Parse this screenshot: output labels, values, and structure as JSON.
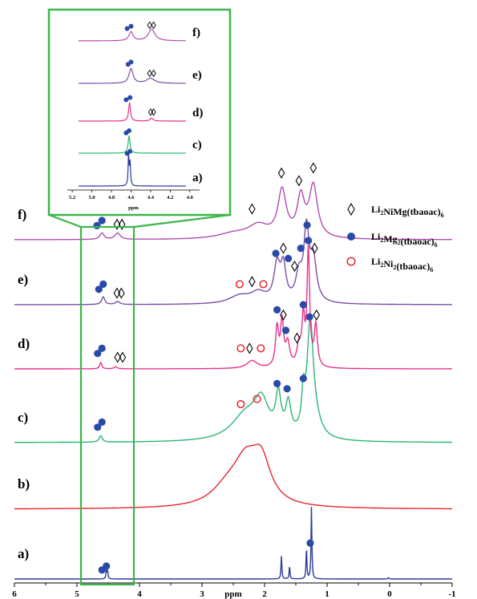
{
  "chart_data": {
    "type": "line",
    "xlabel": "ppm",
    "xlim": [
      6,
      -1
    ],
    "x_reversed": true,
    "xticks": [
      "6",
      "5",
      "4",
      "3",
      "2",
      "1",
      "0",
      "-1"
    ],
    "colors": {
      "a": "#2b3a9a",
      "b": "#e8262e",
      "c": "#2bb673",
      "d": "#e8308a",
      "e": "#7a4fa8",
      "f": "#b04cb0",
      "highlight": "#3db54a",
      "marker_mg": "#2a4aa8",
      "marker_ni": "#e8262e"
    },
    "legend": {
      "position": "right",
      "entries": [
        {
          "symbol": "diamond",
          "label": "Li",
          "sub1": "2",
          "label2": "NiMg(tbaoac)",
          "sub2": "6"
        },
        {
          "symbol": "filled-circle",
          "label": "Li",
          "sub1": "2",
          "label2": "Mg",
          "sub2": "2",
          "label3": "(tbaoac)",
          "sub3": "6"
        },
        {
          "symbol": "open-circle",
          "label": "Li",
          "sub1": "2",
          "label2": "Ni",
          "sub2": "2",
          "label3": "(tbaoac)",
          "sub3": "6"
        }
      ]
    },
    "series": [
      {
        "name": "a)",
        "baseline_y": 0,
        "peaks": [
          [
            4.53,
            0.35,
            0.008
          ],
          [
            4.51,
            0.3,
            0.008
          ],
          [
            1.73,
            0.9,
            0.008
          ],
          [
            1.6,
            0.5,
            0.008
          ],
          [
            1.33,
            1.2,
            0.008
          ],
          [
            1.25,
            2.8,
            0.008
          ],
          [
            0.02,
            0.05,
            0.01
          ]
        ],
        "markers": {
          "mg": [
            [
              4.6,
              0.35
            ],
            [
              4.53,
              0.5
            ],
            [
              1.27,
              1.4
            ]
          ],
          "ni": [],
          "nimg": []
        }
      },
      {
        "name": "b)",
        "baseline_y": 0,
        "peaks": [
          [
            2.3,
            1.6,
            0.25
          ],
          [
            2.05,
            1.5,
            0.18
          ],
          [
            2.6,
            0.6,
            0.3
          ]
        ],
        "markers": {
          "mg": [],
          "ni": [],
          "nimg": []
        }
      },
      {
        "name": "c)",
        "baseline_y": 0,
        "peaks": [
          [
            4.62,
            0.25,
            0.03
          ],
          [
            2.3,
            1.0,
            0.28
          ],
          [
            2.05,
            1.3,
            0.14
          ],
          [
            1.78,
            1.5,
            0.05
          ],
          [
            1.62,
            1.2,
            0.05
          ],
          [
            1.38,
            1.3,
            0.03
          ],
          [
            1.27,
            4.2,
            0.06
          ],
          [
            1.2,
            0.6,
            0.12
          ]
        ],
        "markers": {
          "mg": [
            [
              4.67,
              0.6
            ],
            [
              4.6,
              0.8
            ],
            [
              1.8,
              2.3
            ],
            [
              1.64,
              2.1
            ],
            [
              1.38,
              2.5
            ],
            [
              1.28,
              4.9
            ]
          ],
          "ni": [
            [
              2.38,
              1.5
            ],
            [
              2.12,
              1.7
            ]
          ],
          "nimg": []
        }
      },
      {
        "name": "d)",
        "baseline_y": 0,
        "peaks": [
          [
            4.62,
            0.25,
            0.02
          ],
          [
            4.38,
            0.08,
            0.03
          ],
          [
            2.2,
            0.3,
            0.1
          ],
          [
            1.8,
            1.5,
            0.03
          ],
          [
            1.72,
            1.7,
            0.03
          ],
          [
            1.63,
            0.9,
            0.04
          ],
          [
            1.45,
            0.8,
            0.04
          ],
          [
            1.38,
            1.8,
            0.025
          ],
          [
            1.3,
            4.5,
            0.025
          ],
          [
            1.18,
            1.6,
            0.03
          ]
        ],
        "markers": {
          "mg": [
            [
              4.67,
              0.6
            ],
            [
              4.6,
              0.8
            ],
            [
              1.8,
              2.3
            ],
            [
              1.66,
              1.5
            ],
            [
              1.38,
              2.5
            ],
            [
              1.3,
              5.0
            ]
          ],
          "ni": [
            [
              2.38,
              0.8
            ],
            [
              2.06,
              0.8
            ]
          ],
          "nimg": [
            [
              4.35,
              0.45
            ],
            [
              4.27,
              0.45
            ],
            [
              2.24,
              0.8
            ],
            [
              1.7,
              2.1
            ],
            [
              1.48,
              1.2
            ],
            [
              1.17,
              2.1
            ]
          ]
        }
      },
      {
        "name": "e)",
        "baseline_y": 0,
        "peaks": [
          [
            4.58,
            0.3,
            0.03
          ],
          [
            4.35,
            0.12,
            0.04
          ],
          [
            2.1,
            0.4,
            0.15
          ],
          [
            2.4,
            0.3,
            0.2
          ],
          [
            1.8,
            1.4,
            0.06
          ],
          [
            1.7,
            1.3,
            0.05
          ],
          [
            1.45,
            1.0,
            0.06
          ],
          [
            1.33,
            2.7,
            0.05
          ],
          [
            1.22,
            1.6,
            0.06
          ]
        ],
        "markers": {
          "mg": [
            [
              4.65,
              0.6
            ],
            [
              4.58,
              0.8
            ],
            [
              1.82,
              2.0
            ],
            [
              1.62,
              1.8
            ],
            [
              1.42,
              2.2
            ],
            [
              1.32,
              3.1
            ]
          ],
          "ni": [
            [
              2.4,
              0.8
            ],
            [
              2.02,
              0.8
            ]
          ],
          "nimg": [
            [
              4.36,
              0.45
            ],
            [
              4.29,
              0.45
            ],
            [
              2.2,
              0.9
            ],
            [
              1.7,
              2.2
            ],
            [
              1.52,
              1.5
            ],
            [
              1.2,
              2.2
            ]
          ]
        }
      },
      {
        "name": "f)",
        "baseline_y": 0,
        "peaks": [
          [
            4.6,
            0.25,
            0.04
          ],
          [
            4.35,
            0.25,
            0.05
          ],
          [
            2.1,
            0.5,
            0.2
          ],
          [
            1.72,
            1.8,
            0.08
          ],
          [
            1.42,
            1.5,
            0.07
          ],
          [
            1.22,
            2.0,
            0.08
          ],
          [
            2.5,
            0.2,
            0.3
          ]
        ],
        "markers": {
          "mg": [
            [
              4.68,
              0.55
            ],
            [
              4.6,
              0.75
            ]
          ],
          "ni": [],
          "nimg": [
            [
              4.36,
              0.6
            ],
            [
              4.28,
              0.6
            ],
            [
              2.2,
              1.2
            ],
            [
              1.73,
              2.6
            ],
            [
              1.45,
              2.3
            ],
            [
              1.22,
              2.8
            ]
          ]
        }
      }
    ],
    "inset": {
      "xlabel": "ppm",
      "xlim": [
        5.25,
        3.9
      ],
      "xticks": [
        "5.2",
        "5.0",
        "4.8",
        "4.6",
        "4.4",
        "4.2",
        "4.0"
      ],
      "xtick_values": [
        5.2,
        5.0,
        4.8,
        4.6,
        4.4,
        4.2,
        4.0
      ],
      "series": [
        {
          "name": "a)",
          "peaks": [
            [
              4.625,
              2.6,
              0.006
            ],
            [
              4.61,
              2.0,
              0.006
            ]
          ],
          "markers": {
            "mg": [
              [
                4.64,
                2.9
              ],
              [
                4.61,
                3.1
              ]
            ],
            "nimg": []
          }
        },
        {
          "name": "c)",
          "peaks": [
            [
              4.62,
              1.5,
              0.012
            ]
          ],
          "markers": {
            "mg": [
              [
                4.65,
                1.8
              ],
              [
                4.62,
                2.0
              ]
            ],
            "nimg": []
          }
        },
        {
          "name": "d)",
          "peaks": [
            [
              4.615,
              1.6,
              0.012
            ],
            [
              4.39,
              0.25,
              0.02
            ]
          ],
          "markers": {
            "mg": [
              [
                4.65,
                1.9
              ],
              [
                4.61,
                2.1
              ]
            ],
            "nimg": [
              [
                4.4,
                0.8
              ],
              [
                4.37,
                0.8
              ]
            ]
          }
        },
        {
          "name": "e)",
          "peaks": [
            [
              4.6,
              1.3,
              0.025
            ],
            [
              4.4,
              0.45,
              0.05
            ]
          ],
          "markers": {
            "mg": [
              [
                4.63,
                1.7
              ],
              [
                4.6,
                1.9
              ]
            ],
            "nimg": [
              [
                4.41,
                0.9
              ],
              [
                4.37,
                0.9
              ]
            ]
          }
        },
        {
          "name": "f)",
          "peaks": [
            [
              4.6,
              0.8,
              0.025
            ],
            [
              4.39,
              1.05,
              0.04
            ]
          ],
          "markers": {
            "mg": [
              [
                4.64,
                1.1
              ],
              [
                4.6,
                1.3
              ]
            ],
            "nimg": [
              [
                4.41,
                1.4
              ],
              [
                4.37,
                1.4
              ]
            ]
          }
        }
      ]
    }
  }
}
